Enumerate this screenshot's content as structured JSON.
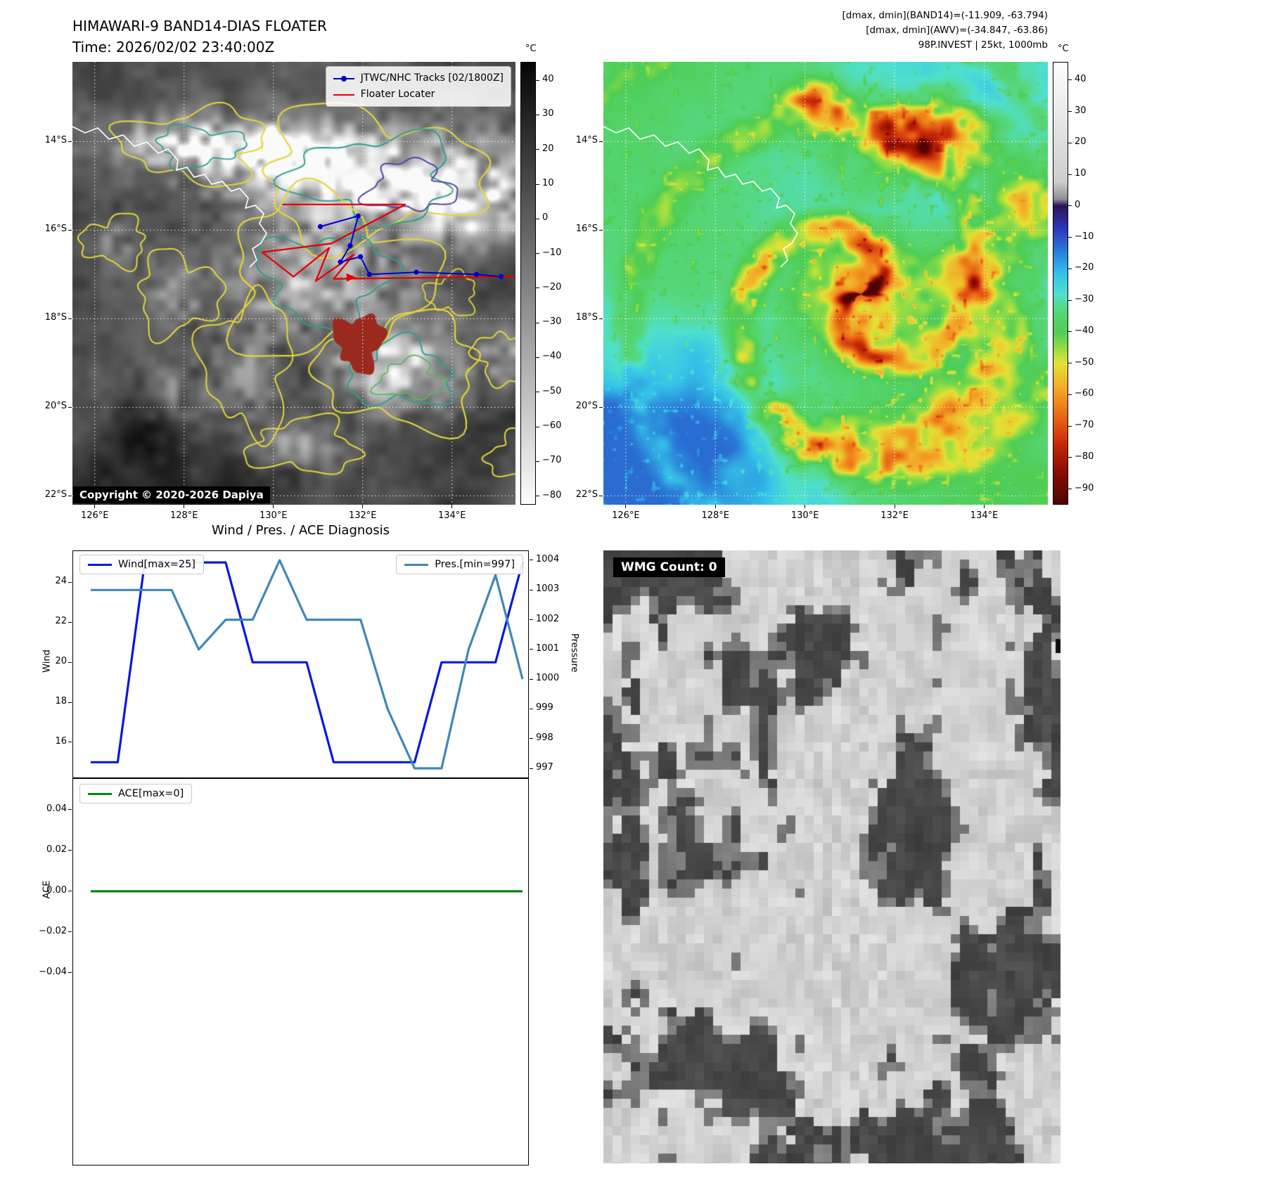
{
  "band14": {
    "title": "HIMAWARI-9 BAND14-DIAS FLOATER",
    "subtitle": "Time: 2026/02/02 23:40:00Z",
    "legend": [
      {
        "label": "JTWC/NHC Tracks [02/1800Z]",
        "color": "#0000cc"
      },
      {
        "label": "Floater Locater",
        "color": "#e60000"
      }
    ],
    "copyright": "Copyright © 2020-2026 Dapiya",
    "x_ticks": [
      "126°E",
      "128°E",
      "130°E",
      "132°E",
      "134°E"
    ],
    "y_ticks": [
      "14°S",
      "16°S",
      "18°S",
      "20°S",
      "22°S"
    ],
    "colorbar": {
      "unit": "°C",
      "ticks": [
        40,
        30,
        20,
        10,
        0,
        -10,
        -20,
        -30,
        -40,
        -50,
        -60,
        -70,
        -80
      ]
    },
    "tracks": {
      "jtwc": {
        "color": "#0000cc",
        "points": [
          [
            131.05,
            -15.92
          ],
          [
            131.9,
            -15.68
          ],
          [
            131.72,
            -16.35
          ],
          [
            131.5,
            -16.72
          ],
          [
            131.95,
            -16.6
          ],
          [
            132.15,
            -17.0
          ],
          [
            133.2,
            -16.95
          ],
          [
            134.55,
            -17.0
          ],
          [
            135.1,
            -17.05
          ]
        ]
      },
      "floater": {
        "color": "#e60000",
        "points": [
          [
            130.2,
            -15.42
          ],
          [
            132.95,
            -15.42
          ],
          [
            131.3,
            -16.3
          ],
          [
            129.75,
            -16.5
          ],
          [
            130.45,
            -17.05
          ],
          [
            131.25,
            -16.4
          ],
          [
            130.95,
            -17.15
          ],
          [
            131.8,
            -16.55
          ],
          [
            131.35,
            -17.1
          ],
          [
            135.42,
            -17.05
          ]
        ]
      }
    }
  },
  "awv": {
    "header_lines": [
      "[dmax, dmin](BAND14)=(-11.909, -63.794)",
      "[dmax, dmin](AWV)=(-34.847, -63.86)",
      "98P.INVEST | 25kt, 1000mb"
    ],
    "x_ticks": [
      "126°E",
      "128°E",
      "130°E",
      "132°E",
      "134°E"
    ],
    "y_ticks": [
      "14°S",
      "16°S",
      "18°S",
      "20°S",
      "22°S"
    ],
    "colorbar": {
      "unit": "°C",
      "ticks": [
        40,
        30,
        20,
        10,
        0,
        -10,
        -20,
        -30,
        -40,
        -50,
        -60,
        -70,
        -80,
        -90
      ]
    }
  },
  "wmg": {
    "label": "WMG Count: 0"
  },
  "chart_data": [
    {
      "type": "line",
      "title": "Wind / Pres. / ACE Diagnosis",
      "x": [
        0,
        1,
        2,
        3,
        4,
        5,
        6,
        7,
        8,
        9,
        10,
        11,
        12,
        13,
        14,
        15,
        16
      ],
      "series": [
        {
          "name": "Wind[max=25]",
          "axis": "left",
          "color": "#0b16e0",
          "values": [
            15,
            15,
            25,
            25,
            25,
            25,
            20,
            20,
            20,
            15,
            15,
            15,
            15,
            20,
            20,
            20,
            25
          ]
        },
        {
          "name": "Pres.[min=997]",
          "axis": "right",
          "color": "#3f87b5",
          "values": [
            1003,
            1003,
            1003,
            1003,
            1001,
            1002,
            1002,
            1004,
            1002,
            1002,
            1002,
            999,
            997,
            997,
            1001,
            1003.5,
            1000
          ]
        }
      ],
      "ylabel": "Wind",
      "y2label": "Pressure",
      "ylim": [
        14.2,
        25.6
      ],
      "y2lim": [
        996.67,
        1004.33
      ],
      "yticks": [
        16,
        18,
        20,
        22,
        24
      ],
      "y2ticks": [
        997,
        998,
        999,
        1000,
        1001,
        1002,
        1003,
        1004
      ],
      "legend_position": [
        "upper left",
        "upper right"
      ],
      "grid": false
    },
    {
      "type": "line",
      "x": [
        0,
        16
      ],
      "series": [
        {
          "name": "ACE[max=0]",
          "axis": "left",
          "color": "#0a870a",
          "values": [
            0,
            0
          ]
        }
      ],
      "ylabel": "ACE",
      "ylim": [
        -0.1345,
        0.0555
      ],
      "yticks": [
        0.04,
        0.02,
        0,
        -0.02,
        -0.04
      ],
      "grid": false
    }
  ]
}
